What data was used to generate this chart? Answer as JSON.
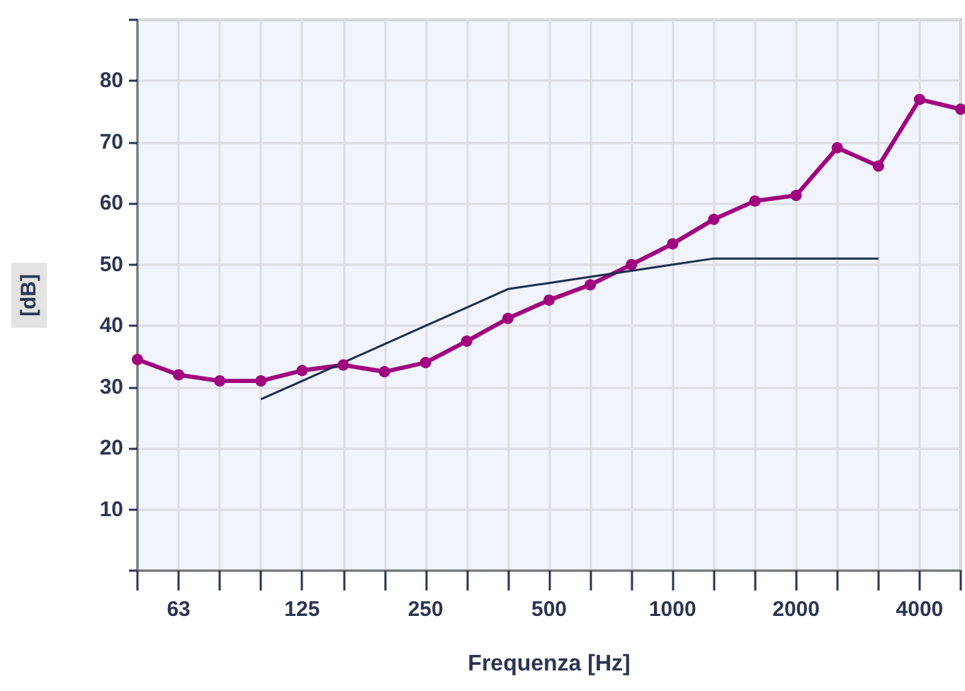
{
  "chart_data": {
    "type": "line",
    "xlabel": "Frequenza [Hz]",
    "ylabel": "[dB]",
    "categories": [
      null,
      "63",
      null,
      null,
      "125",
      null,
      null,
      "250",
      null,
      null,
      "500",
      null,
      null,
      "1000",
      null,
      null,
      "2000",
      null,
      null,
      "4000",
      null
    ],
    "series": [
      {
        "color": "#a0057f",
        "marker": "circle",
        "values": [
          34.5,
          32,
          31,
          31,
          32.7,
          33.6,
          32.5,
          34,
          37.5,
          41.2,
          44.2,
          46.7,
          50,
          53.4,
          57.4,
          60.4,
          61.3,
          69.1,
          66.1,
          77,
          75.4
        ]
      },
      {
        "color": "#1f2d4f",
        "marker": "none",
        "values": [
          null,
          null,
          null,
          28,
          31,
          34,
          37,
          40,
          43,
          46,
          47,
          48,
          49,
          50,
          51,
          51,
          51,
          51,
          51,
          null,
          null
        ]
      }
    ],
    "ylim": [
      0,
      90
    ],
    "yticks": [
      {
        "value": 0,
        "label": null
      },
      10,
      20,
      30,
      40,
      50,
      60,
      70,
      80,
      {
        "value": 90,
        "label": null
      }
    ],
    "grid": true
  }
}
